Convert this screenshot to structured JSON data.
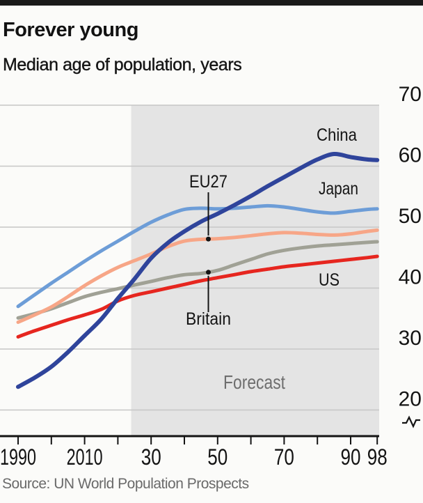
{
  "page": {
    "title": "Forever young",
    "subtitle": "Median age of population, years",
    "source": "Source: UN World Population Prospects"
  },
  "chart_data": {
    "type": "line",
    "title": "Forever young",
    "subtitle": "Median age of population, years",
    "source": "Source: UN World Population Prospects",
    "ylabel": "Median age of population, years",
    "xlim": [
      1990,
      2098
    ],
    "ylim": [
      20,
      70
    ],
    "grid": "horizontal",
    "legend": "direct-labels",
    "axis_break_below": 20,
    "forecast": {
      "start": 2024,
      "end": 2098,
      "label": "Forecast"
    },
    "x": [
      1990,
      1995,
      2000,
      2005,
      2010,
      2015,
      2020,
      2025,
      2030,
      2035,
      2040,
      2045,
      2050,
      2055,
      2060,
      2065,
      2070,
      2075,
      2080,
      2085,
      2090,
      2095,
      2098
    ],
    "series": [
      {
        "name": "Britain",
        "color": "#a0a195",
        "values": [
          35.1,
          35.8,
          36.6,
          37.6,
          38.6,
          39.3,
          39.9,
          40.5,
          41.1,
          41.7,
          42.2,
          42.4,
          42.9,
          43.8,
          44.7,
          45.6,
          46.2,
          46.6,
          46.9,
          47.1,
          47.3,
          47.5,
          47.6
        ]
      },
      {
        "name": "EU27",
        "color": "#f7a687",
        "values": [
          34.4,
          35.6,
          36.9,
          38.6,
          40.4,
          42.0,
          43.4,
          44.5,
          45.6,
          46.8,
          47.7,
          48.0,
          48.1,
          48.3,
          48.6,
          48.9,
          49.1,
          49.0,
          48.8,
          48.7,
          48.9,
          49.3,
          49.5
        ]
      },
      {
        "name": "US",
        "color": "#e6261f",
        "values": [
          32.0,
          33.0,
          33.9,
          34.8,
          35.6,
          36.5,
          37.9,
          38.8,
          39.4,
          40.0,
          40.6,
          41.2,
          41.7,
          42.2,
          42.7,
          43.1,
          43.5,
          43.8,
          44.1,
          44.4,
          44.7,
          45.0,
          45.2
        ]
      },
      {
        "name": "Japan",
        "color": "#6d9dd7",
        "values": [
          37.0,
          38.9,
          40.8,
          42.6,
          44.4,
          46.1,
          47.7,
          49.3,
          50.8,
          52.0,
          52.9,
          53.1,
          53.0,
          53.1,
          53.3,
          53.5,
          53.3,
          52.9,
          52.5,
          52.3,
          52.6,
          52.9,
          53.0
        ]
      },
      {
        "name": "China",
        "color": "#2f449b",
        "values": [
          23.8,
          25.3,
          27.1,
          29.5,
          32.2,
          34.9,
          38.3,
          41.5,
          44.9,
          47.4,
          49.3,
          50.9,
          52.2,
          53.6,
          55.1,
          56.7,
          58.2,
          59.7,
          61.1,
          62.0,
          61.5,
          61.1,
          61.0
        ]
      }
    ],
    "x_ticks": [
      {
        "year": 1990,
        "label": "1990"
      },
      {
        "year": 2000,
        "label": ""
      },
      {
        "year": 2010,
        "label": "2010"
      },
      {
        "year": 2020,
        "label": ""
      },
      {
        "year": 2030,
        "label": "30"
      },
      {
        "year": 2040,
        "label": ""
      },
      {
        "year": 2050,
        "label": "50"
      },
      {
        "year": 2060,
        "label": ""
      },
      {
        "year": 2070,
        "label": "70"
      },
      {
        "year": 2080,
        "label": ""
      },
      {
        "year": 2090,
        "label": "90"
      },
      {
        "year": 2098,
        "label": "98"
      }
    ],
    "y_ticks": [
      {
        "value": 20,
        "label": "20"
      },
      {
        "value": 30,
        "label": "30"
      },
      {
        "value": 40,
        "label": "40"
      },
      {
        "value": 50,
        "label": "50"
      },
      {
        "value": 60,
        "label": "60"
      },
      {
        "value": 70,
        "label": "70"
      }
    ],
    "colors": {
      "band": "#e4e4e4",
      "gridline": "#c6c6c6",
      "axis": "#141414",
      "forecast_text": "#6e6e6e",
      "top_rule": "#1a1a1a"
    }
  }
}
